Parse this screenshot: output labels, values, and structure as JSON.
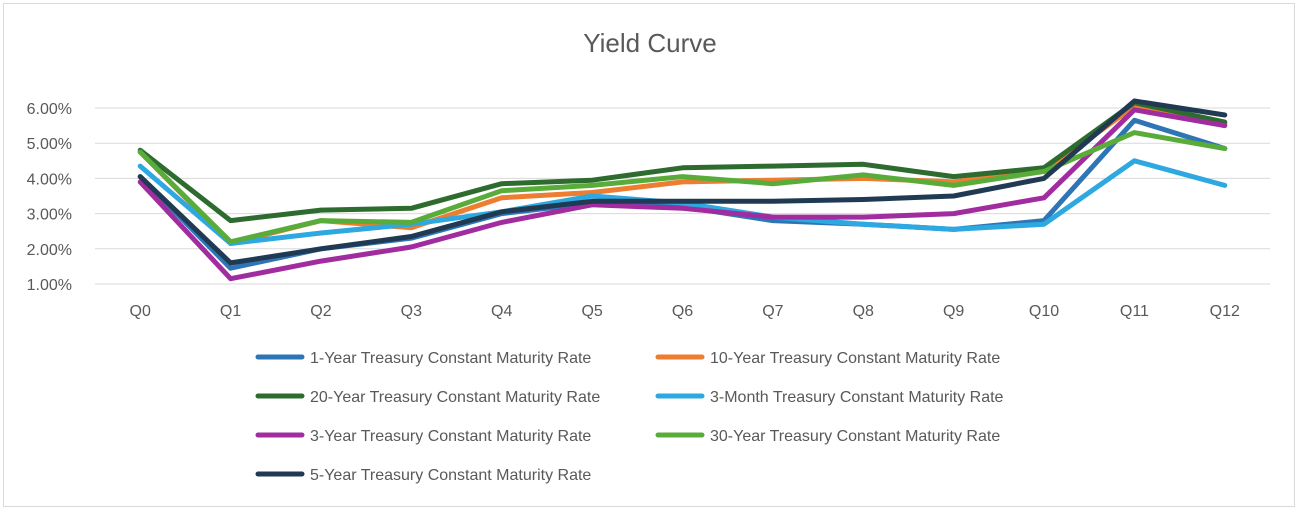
{
  "chart_data": {
    "type": "line",
    "title": "Yield Curve",
    "xlabel": "",
    "ylabel": "",
    "categories": [
      "Q0",
      "Q1",
      "Q2",
      "Q3",
      "Q4",
      "Q5",
      "Q6",
      "Q7",
      "Q8",
      "Q9",
      "Q10",
      "Q11",
      "Q12"
    ],
    "ylim": [
      1.0,
      6.0
    ],
    "yticks": [
      "1.00%",
      "2.00%",
      "3.00%",
      "4.00%",
      "5.00%",
      "6.00%"
    ],
    "grid": true,
    "legend_position": "bottom",
    "series": [
      {
        "name": "1-Year Treasury Constant Maturity Rate",
        "color": "#2e75b6",
        "values": [
          4.05,
          1.45,
          2.0,
          2.3,
          3.0,
          3.3,
          3.2,
          2.8,
          2.7,
          2.55,
          2.8,
          5.65,
          4.85
        ]
      },
      {
        "name": "10-Year Treasury Constant Maturity Rate",
        "color": "#ed7d31",
        "values": [
          4.75,
          2.15,
          2.8,
          2.6,
          3.45,
          3.6,
          3.9,
          3.95,
          4.0,
          3.9,
          4.2,
          6.05,
          5.55
        ]
      },
      {
        "name": "20-Year Treasury Constant Maturity Rate",
        "color": "#2e6b2e",
        "values": [
          4.8,
          2.8,
          3.1,
          3.15,
          3.85,
          3.95,
          4.3,
          4.35,
          4.4,
          4.05,
          4.3,
          6.15,
          5.6
        ]
      },
      {
        "name": "3-Month Treasury Constant Maturity Rate",
        "color": "#2ea8e0",
        "values": [
          4.35,
          2.15,
          2.45,
          2.7,
          3.05,
          3.5,
          3.3,
          2.9,
          2.7,
          2.55,
          2.7,
          4.5,
          3.8
        ]
      },
      {
        "name": "3-Year Treasury Constant Maturity Rate",
        "color": "#a02ca0",
        "values": [
          3.9,
          1.15,
          1.65,
          2.05,
          2.75,
          3.25,
          3.15,
          2.9,
          2.9,
          3.0,
          3.45,
          5.95,
          5.5
        ]
      },
      {
        "name": "30-Year Treasury Constant Maturity Rate",
        "color": "#5aac3a",
        "values": [
          4.75,
          2.2,
          2.8,
          2.75,
          3.65,
          3.8,
          4.05,
          3.85,
          4.1,
          3.8,
          4.2,
          5.3,
          4.85
        ]
      },
      {
        "name": "5-Year Treasury Constant Maturity Rate",
        "color": "#1f3a52",
        "values": [
          4.05,
          1.6,
          2.0,
          2.35,
          3.05,
          3.35,
          3.35,
          3.35,
          3.4,
          3.5,
          4.0,
          6.2,
          5.8
        ]
      }
    ]
  }
}
